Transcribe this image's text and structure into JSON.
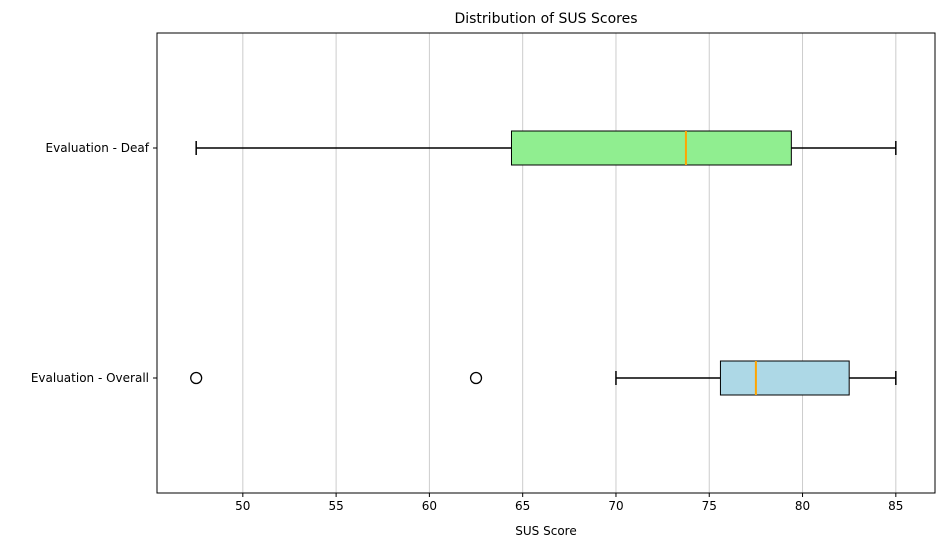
{
  "chart_data": {
    "type": "boxplot",
    "orientation": "horizontal",
    "title": "Distribution of SUS Scores",
    "xlabel": "SUS Score",
    "ylabel": "",
    "xlim": [
      45.4,
      87.1
    ],
    "xticks": [
      50,
      55,
      60,
      65,
      70,
      75,
      80,
      85
    ],
    "grid": "x-axis only",
    "categories": [
      "Evaluation - Deaf",
      "Evaluation - Overall"
    ],
    "series": [
      {
        "category": "Evaluation - Deaf",
        "whisker_low": 47.5,
        "q1": 64.4,
        "median": 73.75,
        "q3": 79.4,
        "whisker_high": 85,
        "outliers": [],
        "color": "#90ee90"
      },
      {
        "category": "Evaluation - Overall",
        "whisker_low": 70,
        "q1": 75.6,
        "median": 77.5,
        "q3": 82.5,
        "whisker_high": 85,
        "outliers": [
          47.5,
          62.5
        ],
        "color": "#add8e6"
      }
    ],
    "median_color": "#ffa500",
    "grid_color": "#cccccc"
  }
}
